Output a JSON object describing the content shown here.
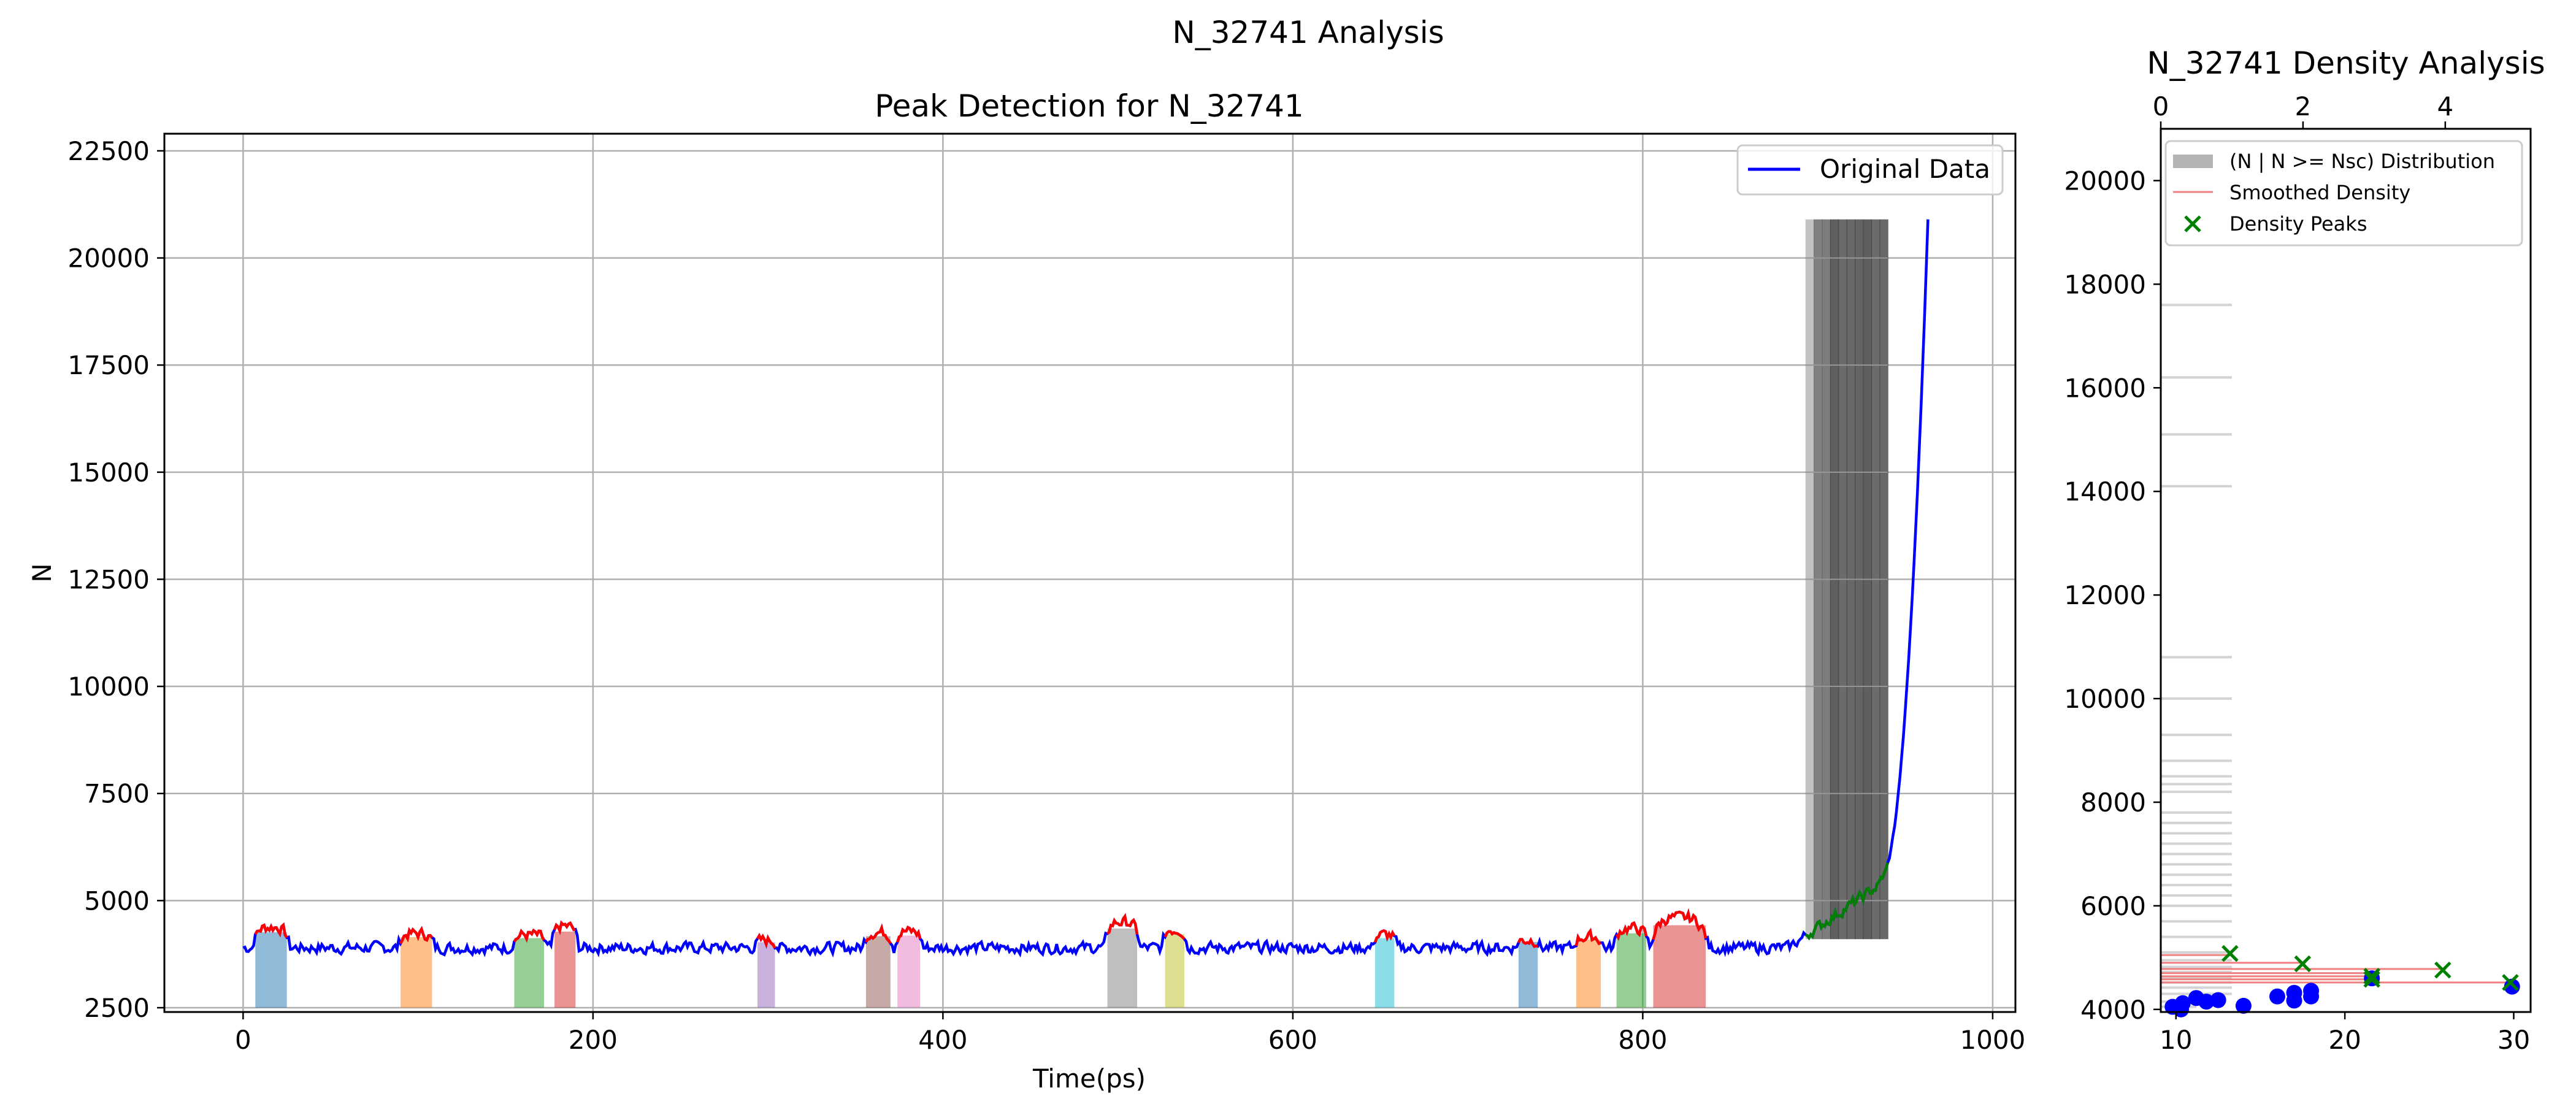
{
  "figure": {
    "suptitle": "N_32741 Analysis"
  },
  "colors": {
    "original": "#0000ff",
    "peak": "#ff0000",
    "green_region": "#008000",
    "hist_gray": "#808080",
    "smoothed": "#f08080",
    "density_peak": "#008000",
    "band_palette": [
      "#1f77b4",
      "#ff7f0e",
      "#2ca02c",
      "#d62728",
      "#9467bd",
      "#8c564b",
      "#e377c2",
      "#7f7f7f",
      "#bcbd22",
      "#17becf"
    ]
  },
  "chart_data": [
    {
      "type": "line",
      "title": "Peak Detection for N_32741",
      "xlabel": "Time(ps)",
      "ylabel": "N",
      "xlim": [
        -45,
        1013
      ],
      "ylim": [
        2400,
        22900
      ],
      "xticks": [
        0,
        200,
        400,
        600,
        800,
        1000
      ],
      "yticks": [
        2500,
        5000,
        7500,
        10000,
        12500,
        15000,
        17500,
        20000,
        22500
      ],
      "grid": true,
      "legend": {
        "position": "upper right",
        "entries": [
          {
            "label": "Original Data"
          }
        ]
      },
      "baseline": 3900,
      "peak_regions": [
        {
          "x0": 7,
          "x1": 25,
          "amp": 480
        },
        {
          "x0": 90,
          "x1": 108,
          "amp": 330
        },
        {
          "x0": 155,
          "x1": 172,
          "amp": 300
        },
        {
          "x0": 178,
          "x1": 190,
          "amp": 500
        },
        {
          "x0": 294,
          "x1": 304,
          "amp": 170
        },
        {
          "x0": 356,
          "x1": 370,
          "amp": 360
        },
        {
          "x0": 374,
          "x1": 387,
          "amp": 380
        },
        {
          "x0": 494,
          "x1": 511,
          "amp": 600
        },
        {
          "x0": 527,
          "x1": 538,
          "amp": 420
        },
        {
          "x0": 647,
          "x1": 658,
          "amp": 300
        },
        {
          "x0": 729,
          "x1": 740,
          "amp": 180
        },
        {
          "x0": 762,
          "x1": 776,
          "amp": 250
        },
        {
          "x0": 785,
          "x1": 802,
          "amp": 450
        },
        {
          "x0": 806,
          "x1": 836,
          "amp": 700
        }
      ],
      "green_region": {
        "x0": 893,
        "x1": 940
      },
      "rise": {
        "x0": 935,
        "x1": 963,
        "y0": 5500,
        "y1": 20900
      },
      "gray_stack": {
        "x0": 893,
        "x1": 940,
        "ytop": 20900
      }
    },
    {
      "type": "scatter",
      "title": "N_32741 Density Analysis",
      "ylim": [
        3950,
        21000
      ],
      "yticks": [
        4000,
        6000,
        8000,
        10000,
        12000,
        14000,
        16000,
        18000,
        20000
      ],
      "xlim_top": [
        0,
        5.2
      ],
      "xticks_top": [
        0,
        2,
        4
      ],
      "xlim_bottom": [
        9.1,
        31
      ],
      "xticks_bottom": [
        10,
        20,
        30
      ],
      "legend": {
        "position": "upper left",
        "entries": [
          {
            "label": "(N | N >= Nsc) Distribution"
          },
          {
            "label": "Smoothed Density"
          },
          {
            "label": "Density Peaks"
          }
        ]
      },
      "hist_bars": [
        {
          "y": 4050,
          "w": 0.5
        },
        {
          "y": 4150,
          "w": 0.6
        },
        {
          "y": 4300,
          "w": 1.0
        },
        {
          "y": 4420,
          "w": 1.0
        },
        {
          "y": 4520,
          "w": 1.0
        },
        {
          "y": 4620,
          "w": 1.0
        },
        {
          "y": 4720,
          "w": 1.0
        },
        {
          "y": 4820,
          "w": 1.0
        },
        {
          "y": 4950,
          "w": 1.0
        },
        {
          "y": 5100,
          "w": 1.0
        },
        {
          "y": 5400,
          "w": 1.0
        },
        {
          "y": 5700,
          "w": 1.0
        },
        {
          "y": 6000,
          "w": 1.0
        },
        {
          "y": 6200,
          "w": 1.0
        },
        {
          "y": 6400,
          "w": 1.0
        },
        {
          "y": 6600,
          "w": 1.0
        },
        {
          "y": 6800,
          "w": 1.0
        },
        {
          "y": 7000,
          "w": 1.0
        },
        {
          "y": 7200,
          "w": 1.0
        },
        {
          "y": 7400,
          "w": 1.0
        },
        {
          "y": 7600,
          "w": 1.0
        },
        {
          "y": 7800,
          "w": 1.0
        },
        {
          "y": 8200,
          "w": 1.0
        },
        {
          "y": 8350,
          "w": 1.0
        },
        {
          "y": 8500,
          "w": 1.0
        },
        {
          "y": 8800,
          "w": 1.0
        },
        {
          "y": 9300,
          "w": 1.0
        },
        {
          "y": 10000,
          "w": 1.0
        },
        {
          "y": 10800,
          "w": 1.0
        },
        {
          "y": 14100,
          "w": 1.0
        },
        {
          "y": 15100,
          "w": 1.0
        },
        {
          "y": 16200,
          "w": 1.0
        },
        {
          "y": 17600,
          "w": 1.0
        }
      ],
      "smoothed_lines": [
        {
          "y": 4520,
          "x": 30
        },
        {
          "y": 4580,
          "x": 22
        },
        {
          "y": 4640,
          "x": 22
        },
        {
          "y": 4700,
          "x": 22
        },
        {
          "y": 4780,
          "x": 26
        },
        {
          "y": 4900,
          "x": 17.5
        },
        {
          "y": 5050,
          "x": 13.2
        }
      ],
      "density_peaks": [
        {
          "x": 13.2,
          "y": 5080
        },
        {
          "x": 17.5,
          "y": 4880
        },
        {
          "x": 21.6,
          "y": 4640
        },
        {
          "x": 21.6,
          "y": 4580
        },
        {
          "x": 25.8,
          "y": 4760
        },
        {
          "x": 29.8,
          "y": 4520
        }
      ],
      "blue_points": [
        {
          "x": 9.8,
          "y": 4050
        },
        {
          "x": 10.4,
          "y": 4120
        },
        {
          "x": 11.2,
          "y": 4220
        },
        {
          "x": 11.8,
          "y": 4150
        },
        {
          "x": 12.5,
          "y": 4180
        },
        {
          "x": 10.3,
          "y": 4000
        },
        {
          "x": 14.0,
          "y": 4070
        },
        {
          "x": 16.0,
          "y": 4250
        },
        {
          "x": 17.0,
          "y": 4320
        },
        {
          "x": 17.0,
          "y": 4170
        },
        {
          "x": 18.0,
          "y": 4250
        },
        {
          "x": 18.0,
          "y": 4360
        },
        {
          "x": 21.6,
          "y": 4600
        },
        {
          "x": 29.9,
          "y": 4440
        }
      ]
    }
  ]
}
